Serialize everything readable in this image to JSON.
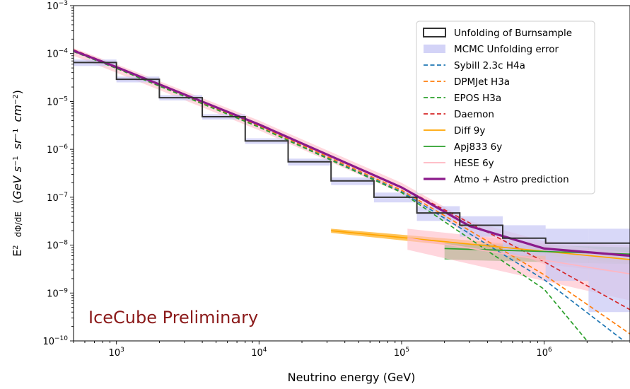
{
  "chart_data": {
    "type": "line",
    "x_scale": "log",
    "y_scale": "log",
    "xlim": [
      500,
      4000000
    ],
    "ylim": [
      1e-10,
      0.001
    ],
    "xlabel": "Neutrino energy (GeV)",
    "ylabel": "E^2 dΦ/dE (GeV s^-1 sr^-1 cm^-2)",
    "x_ticks": [
      {
        "value": 1000,
        "base": "10",
        "exp": "3"
      },
      {
        "value": 10000,
        "base": "10",
        "exp": "4"
      },
      {
        "value": 100000,
        "base": "10",
        "exp": "5"
      },
      {
        "value": 1000000,
        "base": "10",
        "exp": "6"
      }
    ],
    "y_ticks": [
      {
        "value": 0.001,
        "base": "10",
        "exp": "−3"
      },
      {
        "value": 0.0001,
        "base": "10",
        "exp": "−4"
      },
      {
        "value": 1e-05,
        "base": "10",
        "exp": "−5"
      },
      {
        "value": 1e-06,
        "base": "10",
        "exp": "−6"
      },
      {
        "value": 1e-07,
        "base": "10",
        "exp": "−7"
      },
      {
        "value": 1e-08,
        "base": "10",
        "exp": "−8"
      },
      {
        "value": 1e-09,
        "base": "10",
        "exp": "−9"
      },
      {
        "value": 1e-10,
        "base": "10",
        "exp": "−10"
      }
    ],
    "legend_position": "top-right",
    "annotation": {
      "text": "IceCube Preliminary",
      "color": "#8b1a1a"
    },
    "unfolding": {
      "name": "Unfolding of Burnsample",
      "color": "#333333",
      "bin_edges": [
        500,
        1000,
        2000,
        4000,
        8000,
        16000,
        32000,
        64000,
        128000,
        256000,
        512000,
        1024000,
        2048000,
        4096000
      ],
      "values": [
        6.5e-05,
        2.9e-05,
        1.2e-05,
        4.8e-06,
        1.5e-06,
        5.5e-07,
        2.2e-07,
        1e-07,
        4.7e-08,
        2.6e-08,
        1.4e-08,
        1.1e-08,
        1.1e-08
      ]
    },
    "mcmc_error": {
      "name": "MCMC Unfolding error",
      "color": "#c8c8f5",
      "lower": [
        5.5e-05,
        2.5e-05,
        1.05e-05,
        4.2e-06,
        1.3e-06,
        4.6e-07,
        1.8e-07,
        7.8e-08,
        3.2e-08,
        1.5e-08,
        6e-09,
        1.8e-09,
        4e-10
      ],
      "upper": [
        7.5e-05,
        3.3e-05,
        1.35e-05,
        5.4e-06,
        1.7e-06,
        6.4e-07,
        2.6e-07,
        1.25e-07,
        6.5e-08,
        4e-08,
        2.6e-08,
        2.2e-08,
        2.2e-08
      ]
    },
    "series": [
      {
        "name": "Sybill 2.3c H4a",
        "color": "#1f77b4",
        "dash": true,
        "x": [
          500,
          1000,
          10000,
          100000,
          1000000,
          4000000
        ],
        "y": [
          0.00011,
          5e-05,
          3e-06,
          1.3e-07,
          1.9e-09,
          8e-11
        ]
      },
      {
        "name": "DPMJet H3a",
        "color": "#ff7f0e",
        "dash": true,
        "x": [
          500,
          1000,
          10000,
          100000,
          1000000,
          4000000
        ],
        "y": [
          0.000115,
          5.1e-05,
          3.1e-06,
          1.4e-07,
          2.4e-09,
          1.4e-10
        ]
      },
      {
        "name": "EPOS H3a",
        "color": "#2ca02c",
        "dash": true,
        "x": [
          500,
          1000,
          10000,
          100000,
          1000000,
          2000000
        ],
        "y": [
          0.00011,
          4.9e-05,
          2.9e-06,
          1.25e-07,
          1.2e-09,
          1e-10
        ]
      },
      {
        "name": "Daemon",
        "color": "#d62728",
        "dash": true,
        "x": [
          500,
          1000,
          10000,
          100000,
          1000000,
          4000000
        ],
        "y": [
          0.00012,
          5.3e-05,
          3.2e-06,
          1.6e-07,
          4.5e-09,
          4.5e-10
        ]
      },
      {
        "name": "Diff 9y",
        "color": "#ffa500",
        "dash": false,
        "x": [
          32000,
          4000000
        ],
        "y": [
          2e-08,
          5e-09
        ],
        "band": {
          "color": "#ffa500",
          "x": [
            32000,
            4000000
          ],
          "lower": [
            1.8e-08,
            4e-09
          ],
          "upper": [
            2.2e-08,
            6.5e-09
          ]
        }
      },
      {
        "name": "Apj833 6y",
        "color": "#2ca02c",
        "dash": false,
        "x": [
          200000,
          4000000
        ],
        "y": [
          8.5e-09,
          6.5e-09
        ],
        "band": {
          "color": "#2ca02c",
          "x": [
            200000,
            4000000
          ],
          "lower": [
            5e-09,
            4e-09
          ],
          "upper": [
            1.1e-08,
            9e-09
          ]
        }
      },
      {
        "name": "HESE 6y",
        "color": "#ffb6c1",
        "dash": false,
        "x": [
          110000,
          4000000
        ],
        "y": [
          1.4e-08,
          2.5e-09
        ],
        "band": {
          "color": "#ffc0cb",
          "x": [
            110000,
            4000000
          ],
          "lower": [
            8e-09,
            7e-10
          ],
          "upper": [
            2.2e-08,
            7e-09
          ]
        }
      },
      {
        "name": "Atmo + Astro prediction",
        "color": "#8b1a8b",
        "dash": false,
        "thick": true,
        "x": [
          500,
          1000,
          10000,
          100000,
          300000,
          1000000,
          4000000
        ],
        "y": [
          0.000115,
          5.2e-05,
          3.3e-06,
          1.6e-07,
          2.5e-08,
          8.5e-09,
          6e-09
        ],
        "band": {
          "color": "#ffb6c1",
          "x": [
            500,
            1000,
            10000,
            100000,
            300000,
            1000000,
            4000000
          ],
          "lower": [
            9e-05,
            4e-05,
            2.5e-06,
            1.2e-07,
            1.6e-08,
            4e-09,
            2.5e-09
          ],
          "upper": [
            0.00013,
            6e-05,
            4e-06,
            2e-07,
            3.2e-08,
            1.2e-08,
            1e-08
          ]
        }
      }
    ]
  }
}
